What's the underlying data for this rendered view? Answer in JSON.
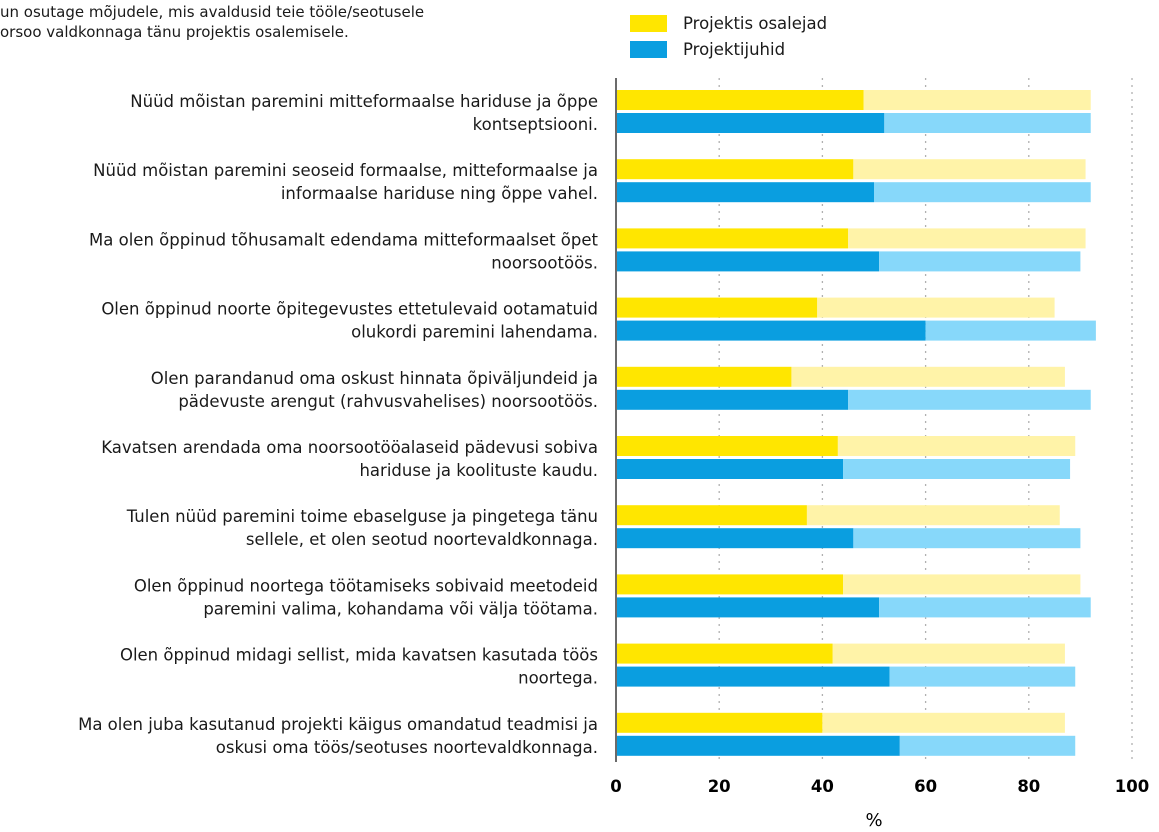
{
  "intro_text": "un osutage mõjudele, mis avaldusid teie tööle/seotusele\norsoo valdkonnaga tänu projektis osalemisele.",
  "colors": {
    "participants_strong": "#ffe600",
    "participants_light": "#fff3a8",
    "leaders_strong": "#0a9ee0",
    "leaders_light": "#87d8fa",
    "grid": "#b0b0b0",
    "axis": "#6b6b6b"
  },
  "chart_data": {
    "type": "bar",
    "orientation": "horizontal",
    "stacked": true,
    "xlabel": "%",
    "xlim": [
      0,
      100
    ],
    "xticks": [
      "0",
      "20",
      "40",
      "60",
      "80",
      "100"
    ],
    "grid": "vertical dotted",
    "legend_position": "top",
    "legend": [
      "Projektis osalejad",
      "Projektijuhid"
    ],
    "categories": [
      [
        "Nüüd mõistan paremini mitteformaalse hariduse ja õppe",
        "kontseptsiooni."
      ],
      [
        "Nüüd mõistan paremini seoseid formaalse, mitteformaalse ja",
        "informaalse hariduse ning õppe vahel."
      ],
      [
        "Ma olen õppinud tõhusamalt edendama mitteformaalset õpet",
        "noorsootöös."
      ],
      [
        "Olen õppinud noorte õpitegevustes ettetulevaid ootamatuid",
        "olukordi paremini lahendama."
      ],
      [
        "Olen parandanud oma oskust hinnata õpiväljundeid ja",
        "pädevuste arengut (rahvusvahelises) noorsootöös."
      ],
      [
        "Kavatsen arendada oma noorsootööalaseid pädevusi sobiva",
        "hariduse ja koolituste kaudu."
      ],
      [
        "Tulen nüüd paremini toime ebaselguse ja pingetega tänu",
        "sellele, et olen seotud noortevaldkonnaga."
      ],
      [
        "Olen õppinud noortega töötamiseks sobivaid meetodeid",
        "paremini valima, kohandama või välja töötama."
      ],
      [
        "Olen õppinud midagi sellist, mida kavatsen kasutada töös",
        "noortega."
      ],
      [
        "Ma olen juba kasutanud projekti käigus omandatud teadmisi ja",
        "oskusi oma töös/seotuses noortevaldkonnaga."
      ]
    ],
    "series": [
      {
        "name": "Projektis osalejad",
        "segments": [
          {
            "values": [
              48,
              46,
              45,
              39,
              34,
              43,
              37,
              44,
              42,
              40
            ]
          },
          {
            "values": [
              44,
              45,
              46,
              46,
              53,
              46,
              49,
              46,
              45,
              47
            ]
          }
        ]
      },
      {
        "name": "Projektijuhid",
        "segments": [
          {
            "values": [
              52,
              50,
              51,
              60,
              45,
              44,
              46,
              51,
              53,
              55
            ]
          },
          {
            "values": [
              40,
              42,
              39,
              33,
              47,
              44,
              44,
              41,
              36,
              34
            ]
          }
        ]
      }
    ]
  }
}
